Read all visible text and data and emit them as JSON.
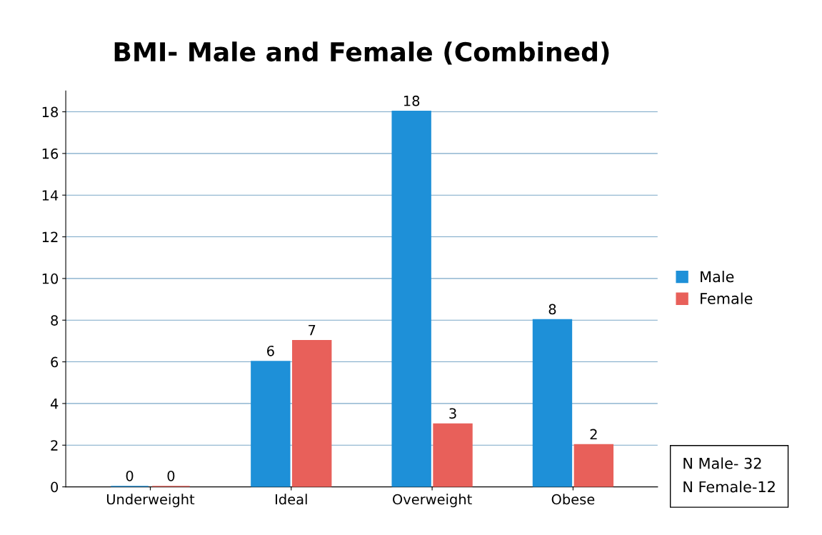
{
  "chart_data": {
    "type": "bar",
    "title": "BMI- Male and Female (Combined)",
    "categories": [
      "Underweight",
      "Ideal",
      "Overweight",
      "Obese"
    ],
    "series": [
      {
        "name": "Male",
        "color": "#1e90d8",
        "values": [
          0,
          6,
          18,
          8
        ]
      },
      {
        "name": "Female",
        "color": "#e8605a",
        "values": [
          0,
          7,
          3,
          2
        ]
      }
    ],
    "ylim": [
      0,
      19
    ],
    "yticks": [
      0,
      2,
      4,
      6,
      8,
      10,
      12,
      14,
      16,
      18
    ],
    "grid": "y",
    "legend": "right",
    "data_labels": true,
    "annotations": [
      "N Male- 32",
      "N Female-12"
    ]
  }
}
